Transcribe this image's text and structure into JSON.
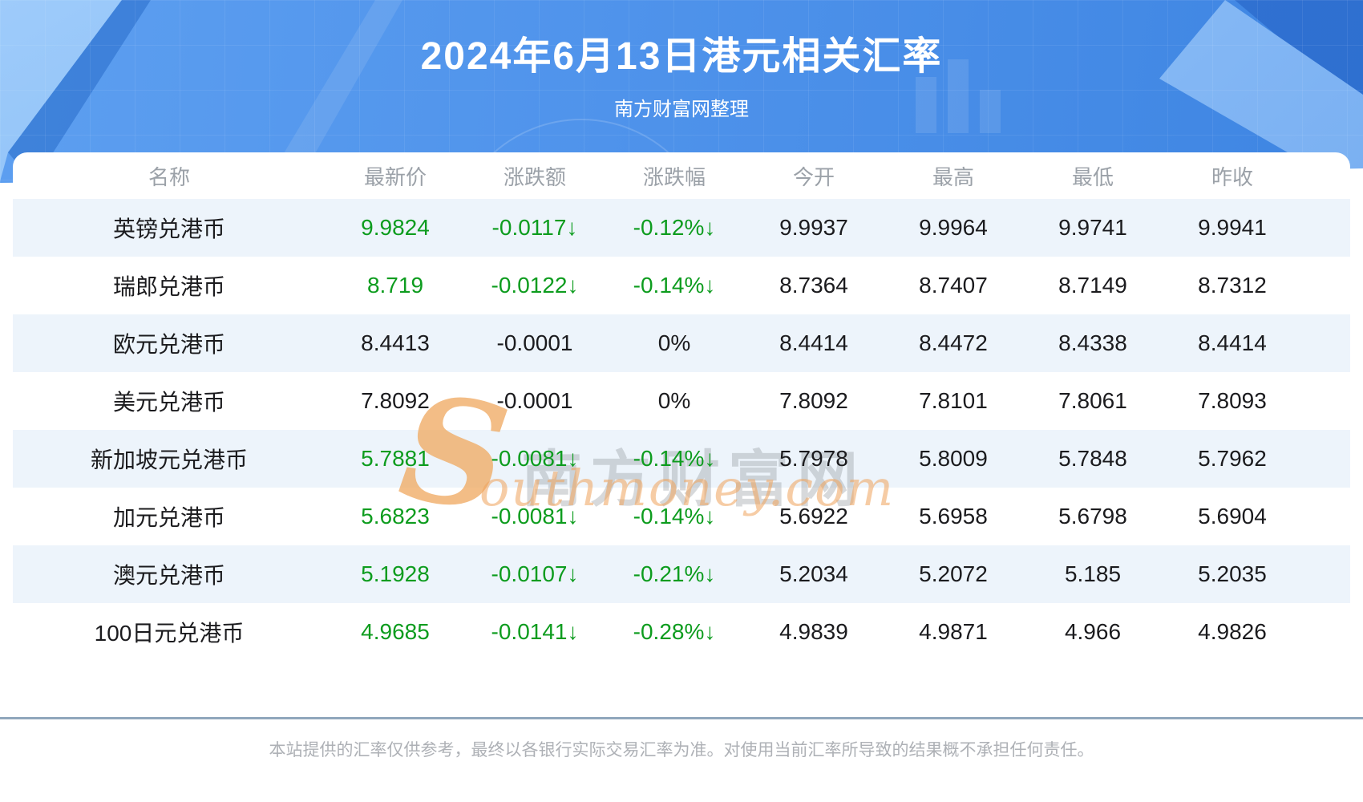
{
  "header": {
    "title": "2024年6月13日港元相关汇率",
    "subtitle": "南方财富网整理"
  },
  "chart_data": {
    "type": "table",
    "title": "2024年6月13日港元相关汇率",
    "subtitle": "南方财富网整理",
    "columns": [
      "名称",
      "最新价",
      "涨跌额",
      "涨跌幅",
      "今开",
      "最高",
      "最低",
      "昨收"
    ],
    "rows": [
      {
        "name": "英镑兑港币",
        "latest": "9.9824",
        "change": "-0.0117↓",
        "change_pct": "-0.12%↓",
        "open": "9.9937",
        "high": "9.9964",
        "low": "9.9741",
        "prev_close": "9.9941",
        "trend": "down"
      },
      {
        "name": "瑞郎兑港币",
        "latest": "8.719",
        "change": "-0.0122↓",
        "change_pct": "-0.14%↓",
        "open": "8.7364",
        "high": "8.7407",
        "low": "8.7149",
        "prev_close": "8.7312",
        "trend": "down"
      },
      {
        "name": "欧元兑港币",
        "latest": "8.4413",
        "change": "-0.0001",
        "change_pct": "0%",
        "open": "8.4414",
        "high": "8.4472",
        "low": "8.4338",
        "prev_close": "8.4414",
        "trend": "flat"
      },
      {
        "name": "美元兑港币",
        "latest": "7.8092",
        "change": "-0.0001",
        "change_pct": "0%",
        "open": "7.8092",
        "high": "7.8101",
        "low": "7.8061",
        "prev_close": "7.8093",
        "trend": "flat"
      },
      {
        "name": "新加坡元兑港币",
        "latest": "5.7881",
        "change": "-0.0081↓",
        "change_pct": "-0.14%↓",
        "open": "5.7978",
        "high": "5.8009",
        "low": "5.7848",
        "prev_close": "5.7962",
        "trend": "down"
      },
      {
        "name": "加元兑港币",
        "latest": "5.6823",
        "change": "-0.0081↓",
        "change_pct": "-0.14%↓",
        "open": "5.6922",
        "high": "5.6958",
        "low": "5.6798",
        "prev_close": "5.6904",
        "trend": "down"
      },
      {
        "name": "澳元兑港币",
        "latest": "5.1928",
        "change": "-0.0107↓",
        "change_pct": "-0.21%↓",
        "open": "5.2034",
        "high": "5.2072",
        "low": "5.185",
        "prev_close": "5.2035",
        "trend": "down"
      },
      {
        "name": "100日元兑港币",
        "latest": "4.9685",
        "change": "-0.0141↓",
        "change_pct": "-0.28%↓",
        "open": "4.9839",
        "high": "4.9871",
        "low": "4.966",
        "prev_close": "4.9826",
        "trend": "down"
      }
    ]
  },
  "watermark": {
    "s_glyph": "S",
    "cn": "南方财富网",
    "en": "outhmoney.com"
  },
  "footer": {
    "disclaimer": "本站提供的汇率仅供参考，最终以各银行实际交易汇率为准。对使用当前汇率所导致的结果概不承担任何责任。"
  },
  "colors": {
    "down_green": "#0d9c1e",
    "row_stripe": "#edf4fb",
    "banner_blue": "#4f93eb",
    "divider": "#90a7bc",
    "watermark_orange": "#f0a45c"
  }
}
